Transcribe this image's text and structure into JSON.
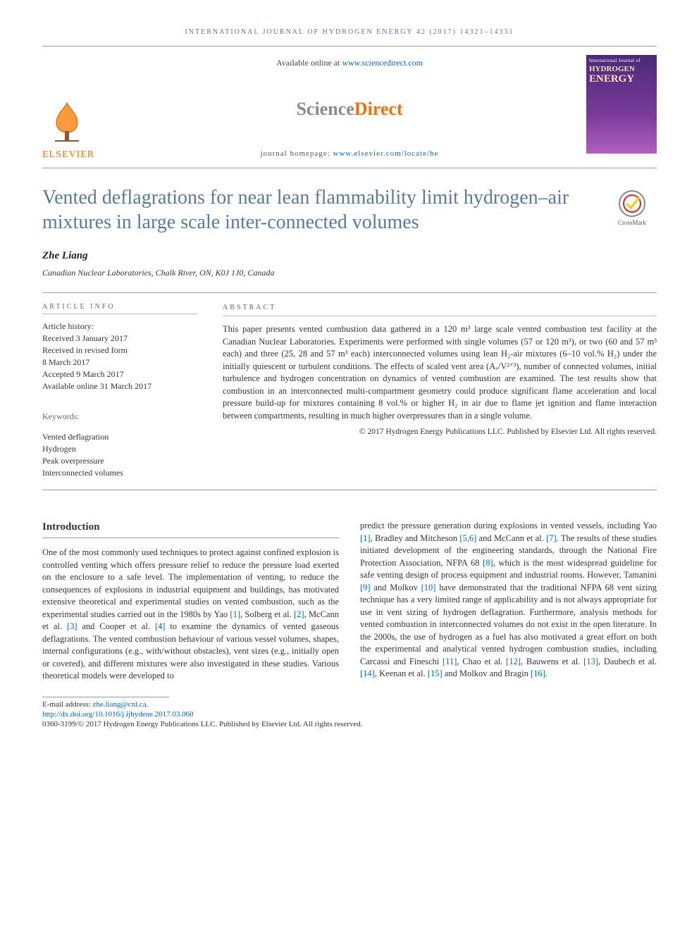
{
  "running_head": "INTERNATIONAL JOURNAL OF HYDROGEN ENERGY 42 (2017) 14321–14331",
  "header": {
    "available_prefix": "Available online at ",
    "available_link": "www.sciencedirect.com",
    "sd_part1": "Science",
    "sd_part2": "Direct",
    "homepage_prefix": "journal homepage: ",
    "homepage_link": "www.elsevier.com/locate/he",
    "publisher": "ELSEVIER",
    "cover": {
      "line1": "International Journal of",
      "line2": "HYDROGEN",
      "line3": "ENERGY"
    }
  },
  "crossmark_label": "CrossMark",
  "title": "Vented deflagrations for near lean flammability limit hydrogen–air mixtures in large scale inter-connected volumes",
  "author": "Zhe Liang",
  "affiliation": "Canadian Nuclear Laboratories, Chalk River, ON, K0J 1J0, Canada",
  "article_info": {
    "label": "ARTICLE INFO",
    "history_head": "Article history:",
    "history": [
      "Received 3 January 2017",
      "Received in revised form",
      "8 March 2017",
      "Accepted 9 March 2017",
      "Available online 31 March 2017"
    ],
    "keywords_head": "Keywords:",
    "keywords": [
      "Vented deflagration",
      "Hydrogen",
      "Peak overpressure",
      "Interconnected volumes"
    ]
  },
  "abstract": {
    "label": "ABSTRACT",
    "text": "This paper presents vented combustion data gathered in a 120 m³ large scale vented combustion test facility at the Canadian Nuclear Laboratories. Experiments were performed with single volumes (57 or 120 m³), or two (60 and 57 m³ each) and three (25, 28 and 57 m³ each) interconnected volumes using lean H₂-air mixtures (6–10 vol.% H₂) under the initially quiescent or turbulent conditions. The effects of scaled vent area (Aᵥ/V²ᐟ³), number of connected volumes, initial turbulence and hydrogen concentration on dynamics of vented combustion are examined. The test results show that combustion in an interconnected multi-compartment geometry could produce significant flame acceleration and local pressure build-up for mixtures containing 8 vol.% or higher H₂ in air due to flame jet ignition and flame interaction between compartments, resulting in much higher overpressures than in a single volume.",
    "copyright": "© 2017 Hydrogen Energy Publications LLC. Published by Elsevier Ltd. All rights reserved."
  },
  "introduction": {
    "heading": "Introduction",
    "col1": "One of the most commonly used techniques to protect against confined explosion is controlled venting which offers pressure relief to reduce the pressure load exerted on the enclosure to a safe level. The implementation of venting, to reduce the consequences of explosions in industrial equipment and buildings, has motivated extensive theoretical and experimental studies on vented combustion, such as the experimental studies carried out in the 1980s by Yao [1], Solberg et al. [2], McCann et al. [3] and Cooper et al. [4] to examine the dynamics of vented gaseous deflagrations. The vented combustion behaviour of various vessel volumes, shapes, internal configurations (e.g., with/without obstacles), vent sizes (e.g., initially open or covered), and different mixtures were also investigated in these studies. Various theoretical models were developed to",
    "col2": "predict the pressure generation during explosions in vented vessels, including Yao [1], Bradley and Mitcheson [5,6] and McCann et al. [7]. The results of these studies initiated development of the engineering standards, through the National Fire Protection Association, NFPA 68 [8], which is the most widespread guideline for safe venting design of process equipment and industrial rooms. However, Tamanini [9] and Molkov [10] have demonstrated that the traditional NFPA 68 vent sizing technique has a very limited range of applicability and is not always appropriate for use in vent sizing of hydrogen deflagration. Furthermore, analysis methods for vented combustion in interconnected volumes do not exist in the open literature. In the 2000s, the use of hydrogen as a fuel has also motivated a great effort on both the experimental and analytical vented hydrogen combustion studies, including Carcassi and Fineschi [11], Chao et al. [12], Bauwens et al. [13], Daubech et al. [14], Keenan et al. [15] and Molkov and Bragin [16]."
  },
  "footer": {
    "email_label": "E-mail address: ",
    "email": "zhe.liang@cnl.ca",
    "doi": "http://dx.doi.org/10.1016/j.ijhydene.2017.03.060",
    "issn_line": "0360-3199/© 2017 Hydrogen Energy Publications LLC. Published by Elsevier Ltd. All rights reserved."
  },
  "colors": {
    "heading_blue": "#5a7a9a",
    "link_blue": "#0066cc",
    "orange": "#ff6c00",
    "rule_gray": "#999999",
    "text": "#333333"
  }
}
